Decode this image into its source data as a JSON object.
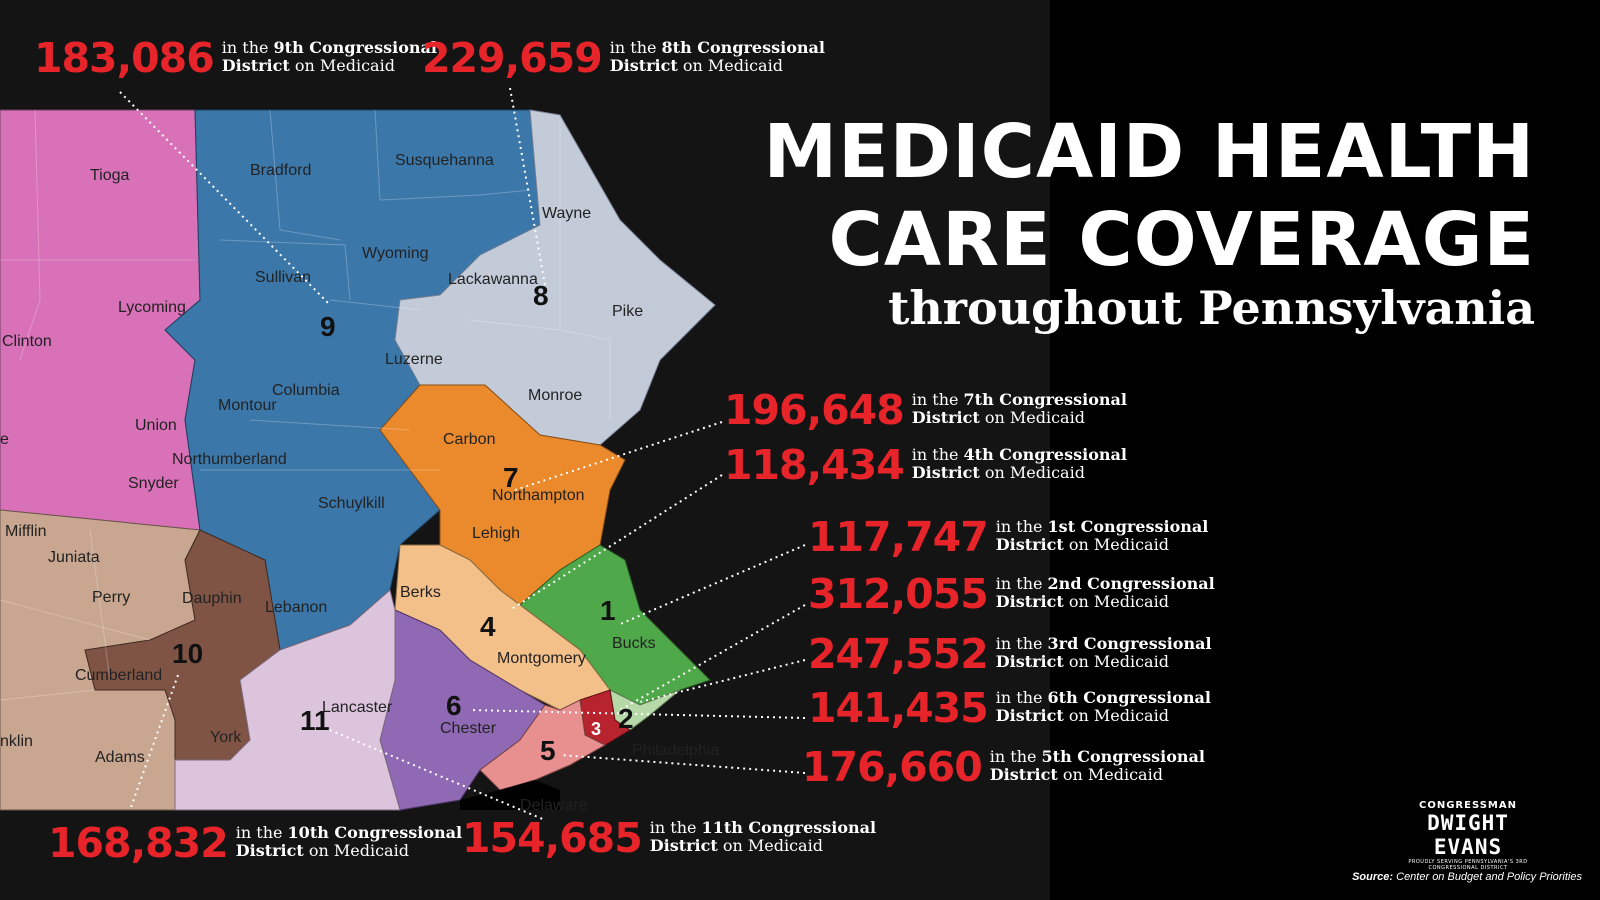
{
  "title": {
    "line1": "MEDICAID HEALTH",
    "line2": "CARE COVERAGE",
    "line3": "throughout Pennsylvania"
  },
  "callouts": [
    {
      "id": "d9",
      "value": "183,086",
      "prefix": "in the ",
      "district": "9th Congressional",
      "bold2": "District",
      "suffix": " on Medicaid"
    },
    {
      "id": "d8",
      "value": "229,659",
      "prefix": "in the ",
      "district": "8th Congressional",
      "bold2": "District",
      "suffix": " on Medicaid"
    },
    {
      "id": "d7",
      "value": "196,648",
      "prefix": "in the ",
      "district": "7th Congressional",
      "bold2": "District",
      "suffix": " on Medicaid"
    },
    {
      "id": "d4",
      "value": "118,434",
      "prefix": "in the ",
      "district": "4th Congressional",
      "bold2": "District",
      "suffix": " on Medicaid"
    },
    {
      "id": "d1",
      "value": "117,747",
      "prefix": "in the ",
      "district": "1st Congressional",
      "bold2": "District",
      "suffix": " on Medicaid"
    },
    {
      "id": "d2",
      "value": "312,055",
      "prefix": "in the ",
      "district": "2nd Congressional",
      "bold2": "District",
      "suffix": " on Medicaid"
    },
    {
      "id": "d3",
      "value": "247,552",
      "prefix": "in the ",
      "district": "3rd Congressional",
      "bold2": "District",
      "suffix": " on Medicaid"
    },
    {
      "id": "d6",
      "value": "141,435",
      "prefix": "in the ",
      "district": "6th Congressional",
      "bold2": "District",
      "suffix": " on Medicaid"
    },
    {
      "id": "d5",
      "value": "176,660",
      "prefix": "in the ",
      "district": "5th Congressional",
      "bold2": "District",
      "suffix": " on Medicaid"
    },
    {
      "id": "d10",
      "value": "168,832",
      "prefix": "in the ",
      "district": "10th Congressional",
      "bold2": "District",
      "suffix": " on Medicaid"
    },
    {
      "id": "d11",
      "value": "154,685",
      "prefix": "in the ",
      "district": "11th Congressional",
      "bold2": "District",
      "suffix": " on Medicaid"
    }
  ],
  "map": {
    "district_numbers": [
      "9",
      "8",
      "7",
      "4",
      "1",
      "2",
      "3",
      "6",
      "5",
      "10",
      "11"
    ],
    "county_labels": [
      "Tioga",
      "Bradford",
      "Susquehanna",
      "Wayne",
      "Wyoming",
      "Lackawanna",
      "Sullivan",
      "Lycoming",
      "Clinton",
      "Pike",
      "Luzerne",
      "Columbia",
      "Montour",
      "Monroe",
      "Union",
      "Carbon",
      "Northumberland",
      "Snyder",
      "Northampton",
      "Schuylkill",
      "Lehigh",
      "Mifflin",
      "Juniata",
      "Perry",
      "Dauphin",
      "Lebanon",
      "Berks",
      "Bucks",
      "Montgomery",
      "Cumberland",
      "Lancaster",
      "Chester",
      "York",
      "Adams",
      "Philadelphia",
      "Delaware",
      "nklin",
      "e"
    ],
    "colors": {
      "d1": "#4fa84a",
      "d2": "#b7d9a8",
      "d3": "#b8242e",
      "d4": "#f3c08a",
      "d5": "#e88f8f",
      "d6": "#8f69b4",
      "d7": "#ea8a2c",
      "d8": "#c3cbd9",
      "d9": "#3c77aa",
      "d10": "#7f5444",
      "d11": "#dcc4dc",
      "d12": "#d871b8",
      "d13": "#c9a690",
      "accent": "#e8242b"
    }
  },
  "logo": {
    "top": "CONGRESSMAN",
    "name": "DWIGHT EVANS",
    "tagline": "PROUDLY SERVING PENNSYLVANIA'S 3RD CONGRESSIONAL DISTRICT"
  },
  "source": {
    "label": "Source:",
    "text": " Center on Budget and Policy Priorities"
  }
}
